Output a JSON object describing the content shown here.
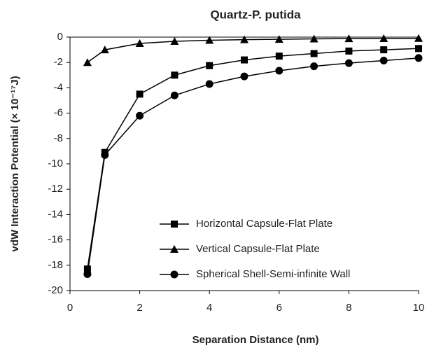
{
  "chart_data": {
    "type": "line",
    "title": "Quartz-P. putida",
    "x_label": "Separation Distance (nm)",
    "y_label": "vdW Interaction Potential (× 10⁻¹⁷J)",
    "x": [
      0.5,
      1,
      2,
      3,
      4,
      5,
      6,
      7,
      8,
      9,
      10
    ],
    "series": [
      {
        "name": "Horizontal Capsule-Flat Plate",
        "color": "#000000",
        "marker": "square",
        "values": [
          -18.3,
          -9.1,
          -4.5,
          -3.0,
          -2.25,
          -1.8,
          -1.5,
          -1.3,
          -1.1,
          -1.0,
          -0.9
        ]
      },
      {
        "name": "Vertical Capsule-Flat Plate",
        "color": "#000000",
        "marker": "triangle",
        "values": [
          -2.0,
          -1.0,
          -0.5,
          -0.33,
          -0.25,
          -0.2,
          -0.17,
          -0.14,
          -0.12,
          -0.11,
          -0.1
        ]
      },
      {
        "name": "Spherical Shell-Semi-infinite Wall",
        "color": "#000000",
        "marker": "circle",
        "values": [
          -18.7,
          -9.3,
          -6.2,
          -4.6,
          -3.7,
          -3.1,
          -2.65,
          -2.3,
          -2.05,
          -1.85,
          -1.65
        ]
      }
    ],
    "xlim": [
      0,
      10
    ],
    "xticks": [
      0,
      2,
      4,
      6,
      8,
      10
    ],
    "ylim": [
      -20,
      0
    ],
    "yticks": [
      0,
      -2,
      -4,
      -6,
      -8,
      -10,
      -12,
      -14,
      -16,
      -18,
      -20
    ],
    "grid": false,
    "legend": "lower right"
  }
}
